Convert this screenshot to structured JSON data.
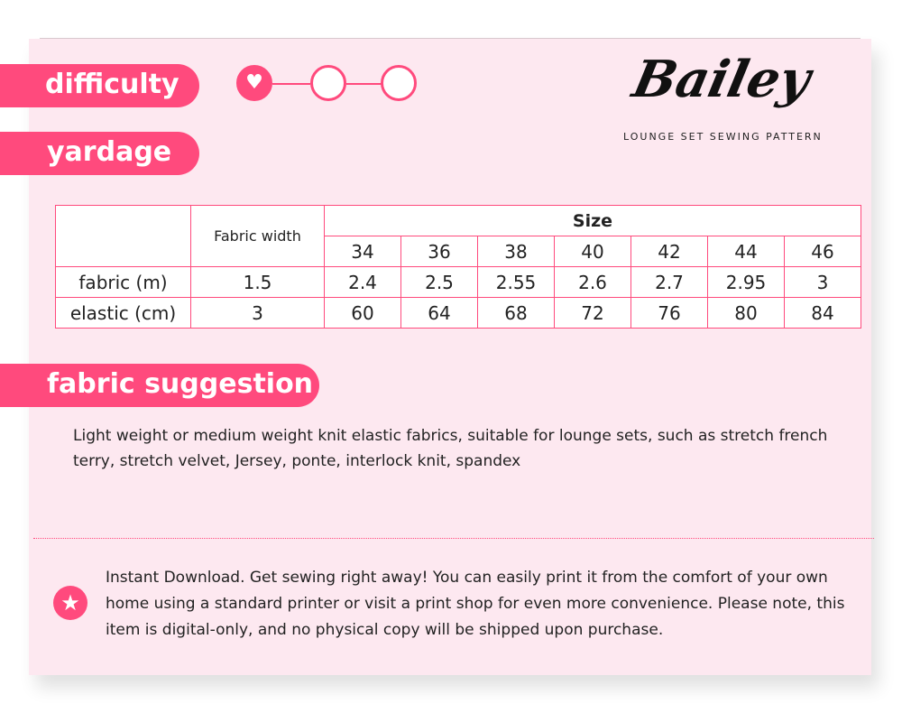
{
  "header": {
    "difficulty_label": "difficulty",
    "yardage_label": "yardage",
    "difficulty_level": 1,
    "difficulty_max": 3,
    "logo_text": "Bailey",
    "subtitle": "LOUNGE SET SEWING PATTERN"
  },
  "table": {
    "fabric_width_header": "Fabric width",
    "size_header": "Size",
    "sizes": [
      "34",
      "36",
      "38",
      "40",
      "42",
      "44",
      "46"
    ],
    "rows": [
      {
        "label": "fabric (m)",
        "width": "1.5",
        "values": [
          "2.4",
          "2.5",
          "2.55",
          "2.6",
          "2.7",
          "2.95",
          "3"
        ]
      },
      {
        "label": "elastic (cm)",
        "width": "3",
        "values": [
          "60",
          "64",
          "68",
          "72",
          "76",
          "80",
          "84"
        ]
      }
    ]
  },
  "fabric": {
    "title": "fabric suggestion",
    "text": "Light weight or medium weight knit elastic fabrics, suitable for lounge sets, such as stretch french terry, stretch velvet, Jersey, ponte, interlock knit, spandex"
  },
  "notice": {
    "icon": "star-icon",
    "text": "Instant Download. Get sewing right away! You can easily print it from the comfort of your own home using a standard printer or visit a print shop for even more convenience. Please note, this item is digital-only, and no physical copy will be shipped upon purchase."
  },
  "colors": {
    "accent": "#ff4a7d",
    "background": "#fde8f0"
  }
}
